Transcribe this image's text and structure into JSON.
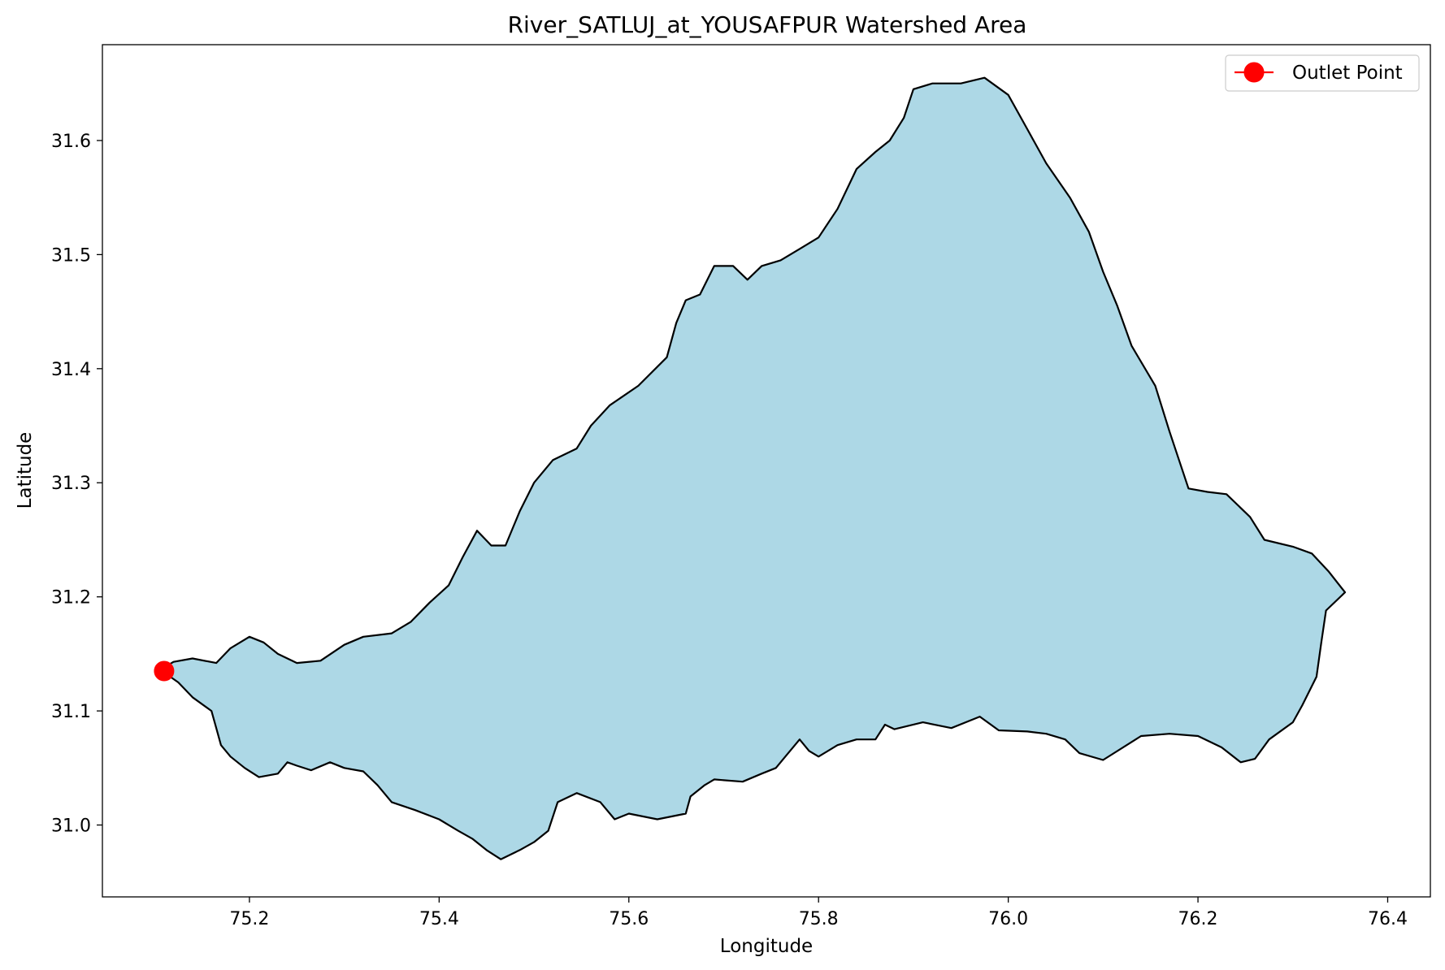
{
  "chart_data": {
    "type": "area",
    "title": "River_SATLUJ_at_YOUSAFPUR Watershed Area",
    "xlabel": "Longitude",
    "ylabel": "Latitude",
    "xlim": [
      75.045,
      76.445
    ],
    "ylim": [
      30.937,
      31.684
    ],
    "xticks": [
      "75.2",
      "75.4",
      "75.6",
      "75.8",
      "76.0",
      "76.2",
      "76.4"
    ],
    "yticks": [
      "31.0",
      "31.1",
      "31.2",
      "31.3",
      "31.4",
      "31.5",
      "31.6"
    ],
    "grid": false,
    "legend": {
      "position": "top-right",
      "entries": [
        "Outlet Point"
      ]
    },
    "colors": {
      "fill": "#add8e6",
      "boundary": "#000000",
      "outlet": "#ff0000"
    },
    "series": [
      {
        "name": "",
        "kind": "watershed_boundary",
        "points": [
          [
            75.108,
            31.137
          ],
          [
            75.12,
            31.143
          ],
          [
            75.14,
            31.146
          ],
          [
            75.165,
            31.142
          ],
          [
            75.18,
            31.155
          ],
          [
            75.2,
            31.165
          ],
          [
            75.215,
            31.16
          ],
          [
            75.23,
            31.15
          ],
          [
            75.25,
            31.142
          ],
          [
            75.275,
            31.144
          ],
          [
            75.3,
            31.158
          ],
          [
            75.32,
            31.165
          ],
          [
            75.35,
            31.168
          ],
          [
            75.37,
            31.178
          ],
          [
            75.39,
            31.195
          ],
          [
            75.41,
            31.21
          ],
          [
            75.425,
            31.235
          ],
          [
            75.44,
            31.258
          ],
          [
            75.455,
            31.245
          ],
          [
            75.47,
            31.245
          ],
          [
            75.485,
            31.275
          ],
          [
            75.5,
            31.3
          ],
          [
            75.52,
            31.32
          ],
          [
            75.545,
            31.33
          ],
          [
            75.56,
            31.35
          ],
          [
            75.58,
            31.368
          ],
          [
            75.61,
            31.385
          ],
          [
            75.64,
            31.41
          ],
          [
            75.65,
            31.44
          ],
          [
            75.66,
            31.46
          ],
          [
            75.675,
            31.465
          ],
          [
            75.69,
            31.49
          ],
          [
            75.71,
            31.49
          ],
          [
            75.725,
            31.478
          ],
          [
            75.74,
            31.49
          ],
          [
            75.76,
            31.495
          ],
          [
            75.78,
            31.505
          ],
          [
            75.8,
            31.515
          ],
          [
            75.82,
            31.54
          ],
          [
            75.84,
            31.575
          ],
          [
            75.86,
            31.59
          ],
          [
            75.875,
            31.6
          ],
          [
            75.89,
            31.62
          ],
          [
            75.9,
            31.645
          ],
          [
            75.92,
            31.65
          ],
          [
            75.95,
            31.65
          ],
          [
            75.975,
            31.655
          ],
          [
            76.0,
            31.64
          ],
          [
            76.02,
            31.61
          ],
          [
            76.04,
            31.58
          ],
          [
            76.065,
            31.55
          ],
          [
            76.085,
            31.52
          ],
          [
            76.1,
            31.485
          ],
          [
            76.115,
            31.455
          ],
          [
            76.13,
            31.42
          ],
          [
            76.155,
            31.385
          ],
          [
            76.17,
            31.345
          ],
          [
            76.18,
            31.32
          ],
          [
            76.19,
            31.295
          ],
          [
            76.21,
            31.292
          ],
          [
            76.23,
            31.29
          ],
          [
            76.255,
            31.27
          ],
          [
            76.27,
            31.25
          ],
          [
            76.3,
            31.244
          ],
          [
            76.32,
            31.238
          ],
          [
            76.338,
            31.222
          ],
          [
            76.355,
            31.204
          ],
          [
            76.335,
            31.188
          ],
          [
            76.33,
            31.16
          ],
          [
            76.325,
            31.13
          ],
          [
            76.31,
            31.105
          ],
          [
            76.3,
            31.09
          ],
          [
            76.275,
            31.075
          ],
          [
            76.26,
            31.058
          ],
          [
            76.245,
            31.055
          ],
          [
            76.225,
            31.068
          ],
          [
            76.2,
            31.078
          ],
          [
            76.17,
            31.08
          ],
          [
            76.14,
            31.078
          ],
          [
            76.1,
            31.057
          ],
          [
            76.075,
            31.063
          ],
          [
            76.06,
            31.075
          ],
          [
            76.04,
            31.08
          ],
          [
            76.02,
            31.082
          ],
          [
            75.99,
            31.083
          ],
          [
            75.97,
            31.095
          ],
          [
            75.94,
            31.085
          ],
          [
            75.91,
            31.09
          ],
          [
            75.88,
            31.084
          ],
          [
            75.87,
            31.088
          ],
          [
            75.86,
            31.075
          ],
          [
            75.84,
            31.075
          ],
          [
            75.82,
            31.07
          ],
          [
            75.8,
            31.06
          ],
          [
            75.79,
            31.065
          ],
          [
            75.78,
            31.075
          ],
          [
            75.765,
            31.06
          ],
          [
            75.755,
            31.05
          ],
          [
            75.74,
            31.045
          ],
          [
            75.72,
            31.038
          ],
          [
            75.69,
            31.04
          ],
          [
            75.68,
            31.035
          ],
          [
            75.665,
            31.025
          ],
          [
            75.66,
            31.01
          ],
          [
            75.63,
            31.005
          ],
          [
            75.6,
            31.01
          ],
          [
            75.585,
            31.005
          ],
          [
            75.57,
            31.02
          ],
          [
            75.545,
            31.028
          ],
          [
            75.525,
            31.02
          ],
          [
            75.515,
            30.995
          ],
          [
            75.5,
            30.985
          ],
          [
            75.485,
            30.978
          ],
          [
            75.465,
            30.97
          ],
          [
            75.45,
            30.978
          ],
          [
            75.435,
            30.988
          ],
          [
            75.42,
            30.995
          ],
          [
            75.4,
            31.005
          ],
          [
            75.375,
            31.013
          ],
          [
            75.35,
            31.02
          ],
          [
            75.335,
            31.035
          ],
          [
            75.32,
            31.047
          ],
          [
            75.3,
            31.05
          ],
          [
            75.285,
            31.055
          ],
          [
            75.265,
            31.048
          ],
          [
            75.25,
            31.052
          ],
          [
            75.24,
            31.055
          ],
          [
            75.23,
            31.045
          ],
          [
            75.21,
            31.042
          ],
          [
            75.195,
            31.05
          ],
          [
            75.18,
            31.06
          ],
          [
            75.17,
            31.07
          ],
          [
            75.165,
            31.085
          ],
          [
            75.16,
            31.1
          ],
          [
            75.14,
            31.112
          ],
          [
            75.125,
            31.125
          ],
          [
            75.108,
            31.135
          ]
        ]
      }
    ],
    "outlet": {
      "name": "Outlet Point",
      "x": 75.11,
      "y": 31.135
    }
  }
}
